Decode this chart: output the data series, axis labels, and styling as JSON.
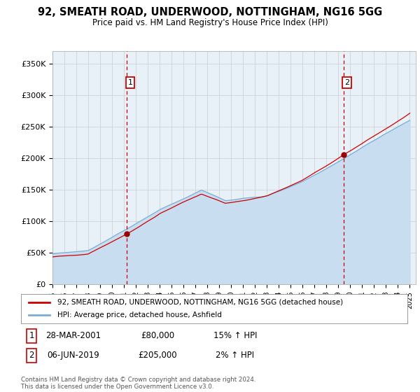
{
  "title": "92, SMEATH ROAD, UNDERWOOD, NOTTINGHAM, NG16 5GG",
  "subtitle": "Price paid vs. HM Land Registry's House Price Index (HPI)",
  "legend_line1": "92, SMEATH ROAD, UNDERWOOD, NOTTINGHAM, NG16 5GG (detached house)",
  "legend_line2": "HPI: Average price, detached house, Ashfield",
  "annotation1_label": "1",
  "annotation1_date": "28-MAR-2001",
  "annotation1_price": "£80,000",
  "annotation1_hpi": "15% ↑ HPI",
  "annotation2_label": "2",
  "annotation2_date": "06-JUN-2019",
  "annotation2_price": "£205,000",
  "annotation2_hpi": "2% ↑ HPI",
  "footer": "Contains HM Land Registry data © Crown copyright and database right 2024.\nThis data is licensed under the Open Government Licence v3.0.",
  "hpi_line_color": "#7aadd4",
  "hpi_fill_color": "#c8ddf0",
  "price_color": "#cc0000",
  "vline_color": "#cc0000",
  "bg_color": "#e8f0f8",
  "annotation_box_color": "#cc0000",
  "dot_color": "#990000",
  "ylim": [
    0,
    370000
  ],
  "yticks": [
    0,
    50000,
    100000,
    150000,
    200000,
    250000,
    300000,
    350000
  ],
  "ytick_labels": [
    "£0",
    "£50K",
    "£100K",
    "£150K",
    "£200K",
    "£250K",
    "£300K",
    "£350K"
  ],
  "sale1_x": 2001.23,
  "sale1_y": 80000,
  "sale2_x": 2019.43,
  "sale2_y": 205000,
  "xlim_start": 1995.0,
  "xlim_end": 2025.5
}
